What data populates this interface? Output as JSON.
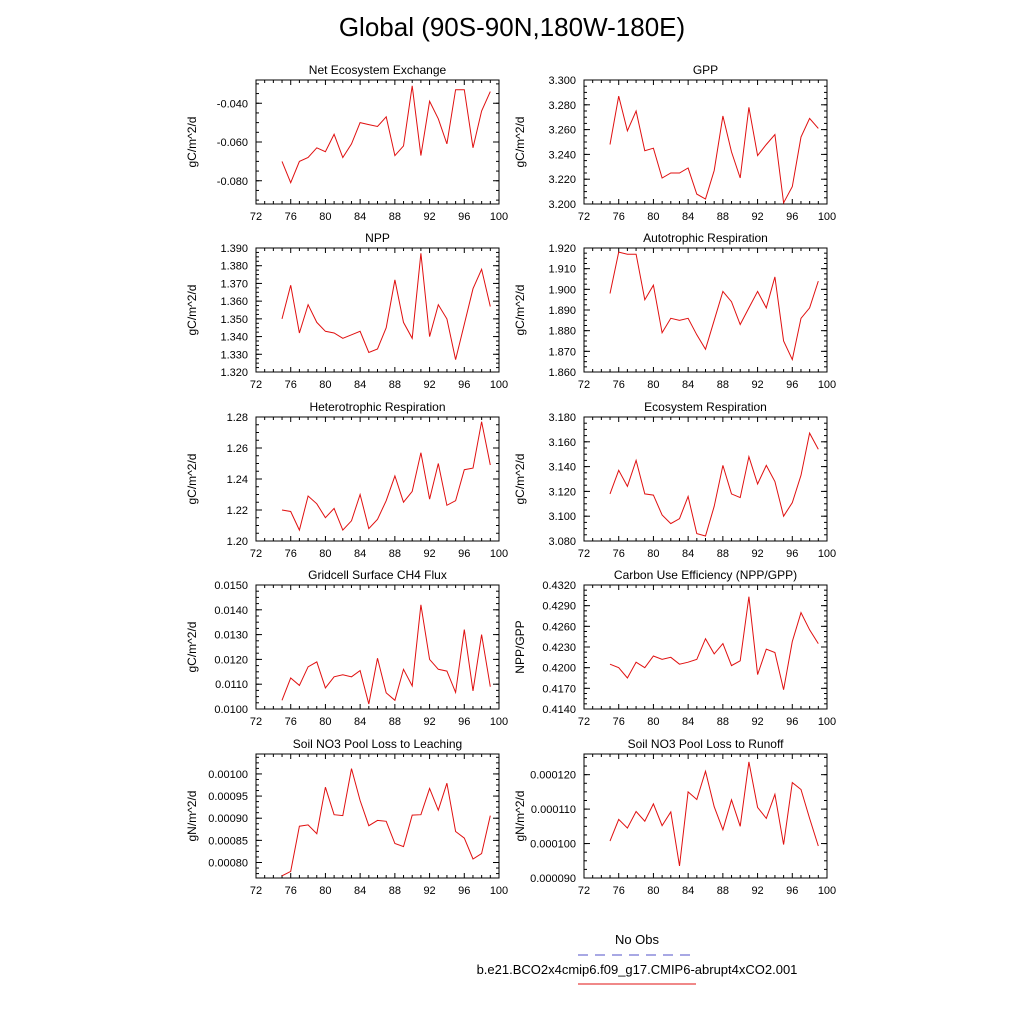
{
  "title": "Global (90S-90N,180W-180E)",
  "legend": {
    "obs_label": "No Obs",
    "obs_color": "#5050c8",
    "case_label": "b.e21.BCO2x4cmip6.f09_g17.CMIP6-abrupt4xCO2.001",
    "case_color": "#e01010"
  },
  "chart_data": [
    {
      "type": "line",
      "title": "Net Ecosystem Exchange",
      "ylabel": "gC/m^2/d",
      "xlim": [
        72,
        100
      ],
      "ylim": [
        -0.092,
        -0.028
      ],
      "xticks": [
        "72",
        "76",
        "80",
        "84",
        "88",
        "92",
        "96",
        "100"
      ],
      "yticks": [
        -0.08,
        -0.06,
        -0.04
      ],
      "ytick_labels": [
        "-0.080",
        "-0.060",
        "-0.040"
      ],
      "series": [
        {
          "color": "#e01010",
          "x": [
            75,
            76,
            77,
            78,
            79,
            80,
            81,
            82,
            83,
            84,
            85,
            86,
            87,
            88,
            89,
            90,
            91,
            92,
            93,
            94,
            95,
            96,
            97,
            98,
            99
          ],
          "values": [
            -0.07,
            -0.081,
            -0.07,
            -0.068,
            -0.063,
            -0.065,
            -0.056,
            -0.068,
            -0.061,
            -0.05,
            -0.051,
            -0.052,
            -0.047,
            -0.067,
            -0.062,
            -0.031,
            -0.067,
            -0.039,
            -0.048,
            -0.061,
            -0.033,
            -0.033,
            -0.063,
            -0.044,
            -0.034
          ]
        }
      ]
    },
    {
      "type": "line",
      "title": "GPP",
      "ylabel": "gC/m^2/d",
      "xlim": [
        72,
        100
      ],
      "ylim": [
        3.2,
        3.3
      ],
      "xticks": [
        "72",
        "76",
        "80",
        "84",
        "88",
        "92",
        "96",
        "100"
      ],
      "yticks": [
        3.2,
        3.22,
        3.24,
        3.26,
        3.28,
        3.3
      ],
      "ytick_labels": [
        "3.200",
        "3.220",
        "3.240",
        "3.260",
        "3.280",
        "3.300"
      ],
      "series": [
        {
          "color": "#e01010",
          "x": [
            75,
            76,
            77,
            78,
            79,
            80,
            81,
            82,
            83,
            84,
            85,
            86,
            87,
            88,
            89,
            90,
            91,
            92,
            93,
            94,
            95,
            96,
            97,
            98,
            99
          ],
          "values": [
            3.248,
            3.287,
            3.259,
            3.275,
            3.243,
            3.245,
            3.221,
            3.225,
            3.225,
            3.229,
            3.208,
            3.204,
            3.227,
            3.271,
            3.242,
            3.221,
            3.278,
            3.239,
            3.248,
            3.256,
            3.201,
            3.214,
            3.254,
            3.269,
            3.261
          ]
        }
      ]
    },
    {
      "type": "line",
      "title": "NPP",
      "ylabel": "gC/m^2/d",
      "xlim": [
        72,
        100
      ],
      "ylim": [
        1.32,
        1.39
      ],
      "xticks": [
        "72",
        "76",
        "80",
        "84",
        "88",
        "92",
        "96",
        "100"
      ],
      "yticks": [
        1.32,
        1.33,
        1.34,
        1.35,
        1.36,
        1.37,
        1.38,
        1.39
      ],
      "ytick_labels": [
        "1.320",
        "1.330",
        "1.340",
        "1.350",
        "1.360",
        "1.370",
        "1.380",
        "1.390"
      ],
      "series": [
        {
          "color": "#e01010",
          "x": [
            75,
            76,
            77,
            78,
            79,
            80,
            81,
            82,
            83,
            84,
            85,
            86,
            87,
            88,
            89,
            90,
            91,
            92,
            93,
            94,
            95,
            96,
            97,
            98,
            99
          ],
          "values": [
            1.35,
            1.369,
            1.342,
            1.358,
            1.348,
            1.343,
            1.342,
            1.339,
            1.341,
            1.343,
            1.331,
            1.333,
            1.345,
            1.372,
            1.348,
            1.339,
            1.387,
            1.34,
            1.358,
            1.35,
            1.327,
            1.347,
            1.367,
            1.378,
            1.357
          ]
        }
      ]
    },
    {
      "type": "line",
      "title": "Autotrophic Respiration",
      "ylabel": "gC/m^2/d",
      "xlim": [
        72,
        100
      ],
      "ylim": [
        1.86,
        1.92
      ],
      "xticks": [
        "72",
        "76",
        "80",
        "84",
        "88",
        "92",
        "96",
        "100"
      ],
      "yticks": [
        1.86,
        1.87,
        1.88,
        1.89,
        1.9,
        1.91,
        1.92
      ],
      "ytick_labels": [
        "1.860",
        "1.870",
        "1.880",
        "1.890",
        "1.900",
        "1.910",
        "1.920"
      ],
      "series": [
        {
          "color": "#e01010",
          "x": [
            75,
            76,
            77,
            78,
            79,
            80,
            81,
            82,
            83,
            84,
            85,
            86,
            87,
            88,
            89,
            90,
            91,
            92,
            93,
            94,
            95,
            96,
            97,
            98,
            99
          ],
          "values": [
            1.898,
            1.918,
            1.917,
            1.917,
            1.895,
            1.902,
            1.879,
            1.886,
            1.885,
            1.886,
            1.878,
            1.871,
            1.885,
            1.899,
            1.894,
            1.883,
            1.891,
            1.899,
            1.891,
            1.906,
            1.875,
            1.866,
            1.886,
            1.891,
            1.904
          ]
        }
      ]
    },
    {
      "type": "line",
      "title": "Heterotrophic Respiration",
      "ylabel": "gC/m^2/d",
      "xlim": [
        72,
        100
      ],
      "ylim": [
        1.2,
        1.28
      ],
      "xticks": [
        "72",
        "76",
        "80",
        "84",
        "88",
        "92",
        "96",
        "100"
      ],
      "yticks": [
        1.2,
        1.22,
        1.24,
        1.26,
        1.28
      ],
      "ytick_labels": [
        "1.20",
        "1.22",
        "1.24",
        "1.26",
        "1.28"
      ],
      "series": [
        {
          "color": "#e01010",
          "x": [
            75,
            76,
            77,
            78,
            79,
            80,
            81,
            82,
            83,
            84,
            85,
            86,
            87,
            88,
            89,
            90,
            91,
            92,
            93,
            94,
            95,
            96,
            97,
            98,
            99
          ],
          "values": [
            1.22,
            1.219,
            1.207,
            1.229,
            1.224,
            1.215,
            1.221,
            1.207,
            1.213,
            1.23,
            1.208,
            1.214,
            1.226,
            1.242,
            1.225,
            1.232,
            1.257,
            1.227,
            1.25,
            1.223,
            1.226,
            1.246,
            1.247,
            1.277,
            1.249
          ]
        }
      ]
    },
    {
      "type": "line",
      "title": "Ecosystem Respiration",
      "ylabel": "gC/m^2/d",
      "xlim": [
        72,
        100
      ],
      "ylim": [
        3.08,
        3.18
      ],
      "xticks": [
        "72",
        "76",
        "80",
        "84",
        "88",
        "92",
        "96",
        "100"
      ],
      "yticks": [
        3.08,
        3.1,
        3.12,
        3.14,
        3.16,
        3.18
      ],
      "ytick_labels": [
        "3.080",
        "3.100",
        "3.120",
        "3.140",
        "3.160",
        "3.180"
      ],
      "series": [
        {
          "color": "#e01010",
          "x": [
            75,
            76,
            77,
            78,
            79,
            80,
            81,
            82,
            83,
            84,
            85,
            86,
            87,
            88,
            89,
            90,
            91,
            92,
            93,
            94,
            95,
            96,
            97,
            98,
            99
          ],
          "values": [
            3.118,
            3.137,
            3.124,
            3.145,
            3.118,
            3.117,
            3.101,
            3.094,
            3.098,
            3.116,
            3.086,
            3.084,
            3.108,
            3.141,
            3.118,
            3.115,
            3.148,
            3.126,
            3.141,
            3.128,
            3.1,
            3.111,
            3.133,
            3.167,
            3.154
          ]
        }
      ]
    },
    {
      "type": "line",
      "title": "Gridcell Surface CH4 Flux",
      "ylabel": "gC/m^2/d",
      "xlim": [
        72,
        100
      ],
      "ylim": [
        0.01,
        0.015
      ],
      "xticks": [
        "72",
        "76",
        "80",
        "84",
        "88",
        "92",
        "96",
        "100"
      ],
      "yticks": [
        0.01,
        0.011,
        0.012,
        0.013,
        0.014,
        0.015
      ],
      "ytick_labels": [
        "0.0100",
        "0.0110",
        "0.0120",
        "0.0130",
        "0.0140",
        "0.0150"
      ],
      "series": [
        {
          "color": "#e01010",
          "x": [
            75,
            76,
            77,
            78,
            79,
            80,
            81,
            82,
            83,
            84,
            85,
            86,
            87,
            88,
            89,
            90,
            91,
            92,
            93,
            94,
            95,
            96,
            97,
            98,
            99
          ],
          "values": [
            0.01035,
            0.01125,
            0.01095,
            0.0117,
            0.0119,
            0.01085,
            0.0113,
            0.01138,
            0.0113,
            0.01155,
            0.0102,
            0.01205,
            0.01065,
            0.01035,
            0.0116,
            0.01093,
            0.0142,
            0.012,
            0.0116,
            0.01153,
            0.01067,
            0.0132,
            0.01073,
            0.013,
            0.0109
          ]
        }
      ]
    },
    {
      "type": "line",
      "title": "Carbon Use Efficiency (NPP/GPP)",
      "ylabel": "NPP/GPP",
      "xlim": [
        72,
        100
      ],
      "ylim": [
        0.414,
        0.432
      ],
      "xticks": [
        "72",
        "76",
        "80",
        "84",
        "88",
        "92",
        "96",
        "100"
      ],
      "yticks": [
        0.414,
        0.417,
        0.42,
        0.423,
        0.426,
        0.429,
        0.432
      ],
      "ytick_labels": [
        "0.4140",
        "0.4170",
        "0.4200",
        "0.4230",
        "0.4260",
        "0.4290",
        "0.4320"
      ],
      "series": [
        {
          "color": "#e01010",
          "x": [
            75,
            76,
            77,
            78,
            79,
            80,
            81,
            82,
            83,
            84,
            85,
            86,
            87,
            88,
            89,
            90,
            91,
            92,
            93,
            94,
            95,
            96,
            97,
            98,
            99
          ],
          "values": [
            0.4205,
            0.42,
            0.4185,
            0.4208,
            0.42,
            0.4217,
            0.4212,
            0.4215,
            0.4205,
            0.4208,
            0.4212,
            0.4242,
            0.422,
            0.4235,
            0.4203,
            0.421,
            0.4303,
            0.419,
            0.4227,
            0.4222,
            0.4168,
            0.4238,
            0.428,
            0.4255,
            0.4235
          ]
        }
      ]
    },
    {
      "type": "line",
      "title": "Soil NO3 Pool Loss to Leaching",
      "ylabel": "gN/m^2/d",
      "xlim": [
        72,
        100
      ],
      "ylim": [
        0.000765,
        0.001045
      ],
      "xticks": [
        "72",
        "76",
        "80",
        "84",
        "88",
        "92",
        "96",
        "100"
      ],
      "yticks": [
        0.0008,
        0.00085,
        0.0009,
        0.00095,
        0.001
      ],
      "ytick_labels": [
        "0.00080",
        "0.00085",
        "0.00090",
        "0.00095",
        "0.00100"
      ],
      "series": [
        {
          "color": "#e01010",
          "x": [
            75,
            76,
            77,
            78,
            79,
            80,
            81,
            82,
            83,
            84,
            85,
            86,
            87,
            88,
            89,
            90,
            91,
            92,
            93,
            94,
            95,
            96,
            97,
            98,
            99
          ],
          "values": [
            0.00077,
            0.00078,
            0.000882,
            0.000885,
            0.000865,
            0.00097,
            0.000908,
            0.000906,
            0.001012,
            0.00094,
            0.000883,
            0.000895,
            0.000893,
            0.000843,
            0.000836,
            0.000907,
            0.000908,
            0.000967,
            0.000918,
            0.000979,
            0.00087,
            0.000855,
            0.000808,
            0.00082,
            0.000906
          ]
        }
      ]
    },
    {
      "type": "line",
      "title": "Soil NO3 Pool Loss to Runoff",
      "ylabel": "gN/m^2/d",
      "xlim": [
        72,
        100
      ],
      "ylim": [
        9e-05,
        0.000126
      ],
      "xticks": [
        "72",
        "76",
        "80",
        "84",
        "88",
        "92",
        "96",
        "100"
      ],
      "yticks": [
        9e-05,
        0.0001,
        0.00011,
        0.00012
      ],
      "ytick_labels": [
        "0.000090",
        "0.000100",
        "0.000110",
        "0.000120"
      ],
      "series": [
        {
          "color": "#e01010",
          "x": [
            75,
            76,
            77,
            78,
            79,
            80,
            81,
            82,
            83,
            84,
            85,
            86,
            87,
            88,
            89,
            90,
            91,
            92,
            93,
            94,
            95,
            96,
            97,
            98,
            99
          ],
          "values": [
            0.0001007,
            0.000107,
            0.0001045,
            0.0001093,
            0.0001065,
            0.0001115,
            0.0001052,
            0.0001092,
            9.35e-05,
            0.000115,
            0.0001128,
            0.000121,
            0.0001107,
            0.000104,
            0.0001127,
            0.000105,
            0.0001237,
            0.0001105,
            0.0001073,
            0.0001143,
            9.97e-05,
            0.0001177,
            0.0001157,
            0.0001073,
            9.93e-05
          ]
        }
      ]
    }
  ]
}
